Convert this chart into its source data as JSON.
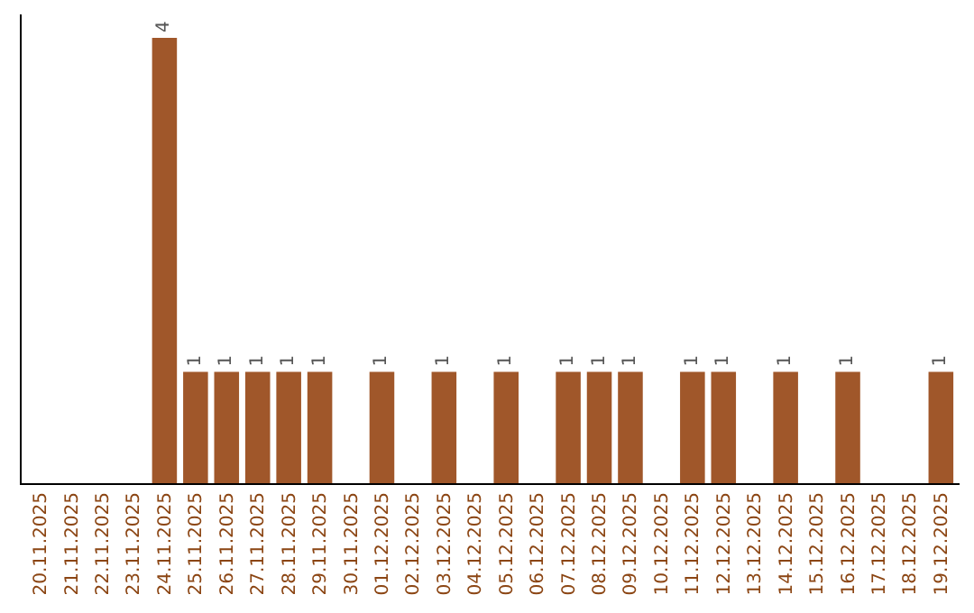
{
  "chart_data": {
    "type": "bar",
    "categories": [
      "20.11.2025",
      "21.11.2025",
      "22.11.2025",
      "23.11.2025",
      "24.11.2025",
      "25.11.2025",
      "26.11.2025",
      "27.11.2025",
      "28.11.2025",
      "29.11.2025",
      "30.11.2025",
      "01.12.2025",
      "02.12.2025",
      "03.12.2025",
      "04.12.2025",
      "05.12.2025",
      "06.12.2025",
      "07.12.2025",
      "08.12.2025",
      "09.12.2025",
      "10.12.2025",
      "11.12.2025",
      "12.12.2025",
      "13.12.2025",
      "14.12.2025",
      "15.12.2025",
      "16.12.2025",
      "17.12.2025",
      "18.12.2025",
      "19.12.2025"
    ],
    "values": [
      null,
      null,
      null,
      null,
      4,
      1,
      1,
      1,
      1,
      1,
      null,
      1,
      null,
      1,
      null,
      1,
      null,
      1,
      1,
      1,
      null,
      1,
      1,
      null,
      1,
      null,
      1,
      null,
      null,
      1
    ],
    "color": "#a0572a",
    "data_labels": true,
    "tick_labels": "x"
  }
}
